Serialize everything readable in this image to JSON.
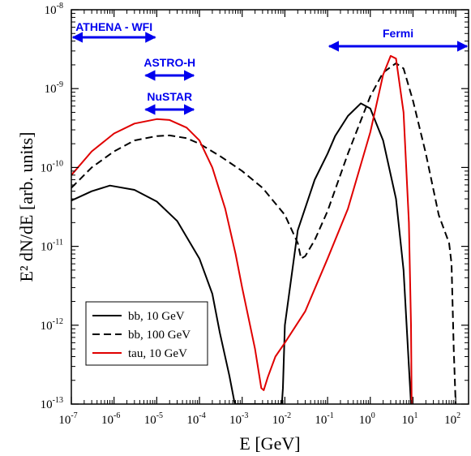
{
  "chart_data": {
    "type": "line",
    "title": "",
    "xlabel": "E [GeV]",
    "ylabel": "E² dN/dE [arb. units]",
    "xscale": "log",
    "yscale": "log",
    "xlim": [
      1e-07,
      200
    ],
    "ylim": [
      1e-13,
      1e-08
    ],
    "xticks": [
      {
        "label": "10",
        "exp": "-7",
        "value": 1e-07
      },
      {
        "label": "10",
        "exp": "-6",
        "value": 1e-06
      },
      {
        "label": "10",
        "exp": "-5",
        "value": 1e-05
      },
      {
        "label": "10",
        "exp": "-4",
        "value": 0.0001
      },
      {
        "label": "10",
        "exp": "-3",
        "value": 0.001
      },
      {
        "label": "10",
        "exp": "-2",
        "value": 0.01
      },
      {
        "label": "10",
        "exp": "-1",
        "value": 0.1
      },
      {
        "label": "10",
        "exp": "0",
        "value": 1
      },
      {
        "label": "10",
        "exp": "1",
        "value": 10
      },
      {
        "label": "10",
        "exp": "2",
        "value": 100
      }
    ],
    "yticks": [
      {
        "label": "10",
        "exp": "-13",
        "value": 1e-13
      },
      {
        "label": "10",
        "exp": "-12",
        "value": 1e-12
      },
      {
        "label": "10",
        "exp": "-11",
        "value": 1e-11
      },
      {
        "label": "10",
        "exp": "-10",
        "value": 1e-10
      },
      {
        "label": "10",
        "exp": "-9",
        "value": 1e-09
      },
      {
        "label": "10",
        "exp": "-8",
        "value": 1e-08
      }
    ],
    "grid": false,
    "legend_position": "bottom-left",
    "series": [
      {
        "name": "bb, 10 GeV",
        "color": "#000000",
        "dash": "solid",
        "x": [
          1e-07,
          3e-07,
          8e-07,
          3e-06,
          1e-05,
          3e-05,
          0.0001,
          0.0002,
          0.0003,
          0.0005,
          0.00065,
          0.00068,
          0.0085,
          0.009,
          0.01,
          0.02,
          0.05,
          0.1,
          0.15,
          0.3,
          0.6,
          1.0,
          2.0,
          4.0,
          6.0,
          8.0,
          9.0
        ],
        "y": [
          3.8e-11,
          5e-11,
          5.9e-11,
          5.2e-11,
          3.7e-11,
          2.1e-11,
          7e-12,
          2.5e-12,
          8e-13,
          2.3e-13,
          1.1e-13,
          1e-13,
          1e-13,
          1.6e-13,
          1e-12,
          1.6e-11,
          7e-11,
          1.5e-10,
          2.5e-10,
          4.5e-10,
          6.5e-10,
          5.6e-10,
          2.2e-10,
          4e-11,
          5e-12,
          3e-13,
          1e-13
        ]
      },
      {
        "name": "bb, 100 GeV",
        "color": "#000000",
        "dash": "dashed",
        "x": [
          1e-07,
          3e-07,
          1e-06,
          3e-06,
          1e-05,
          2e-05,
          5e-05,
          0.0001,
          0.0003,
          0.001,
          0.003,
          0.01,
          0.02,
          0.024,
          0.03,
          0.05,
          0.1,
          0.3,
          1.0,
          2.0,
          4.0,
          6.0,
          10.0,
          20.0,
          40.0,
          70.0,
          80.0,
          90.0,
          100.0
        ],
        "y": [
          5.5e-11,
          1e-10,
          1.6e-10,
          2.2e-10,
          2.5e-10,
          2.55e-10,
          2.35e-10,
          2e-10,
          1.4e-10,
          9e-11,
          5.5e-11,
          2.5e-11,
          1.1e-11,
          7e-12,
          7.5e-12,
          1.2e-11,
          2.8e-11,
          1.5e-10,
          8e-10,
          1.6e-09,
          2.1e-09,
          1.8e-09,
          7e-10,
          1.5e-10,
          2.5e-11,
          1.1e-11,
          6e-12,
          5e-13,
          1e-13
        ]
      },
      {
        "name": "tau, 10 GeV",
        "color": "#e00000",
        "dash": "solid",
        "x": [
          1e-07,
          3e-07,
          1e-06,
          3e-06,
          1e-05,
          2e-05,
          5e-05,
          0.0001,
          0.0002,
          0.0004,
          0.0007,
          0.001,
          0.002,
          0.0028,
          0.0032,
          0.004,
          0.006,
          0.01,
          0.03,
          0.1,
          0.3,
          1.0,
          2.0,
          3.0,
          4.0,
          6.0,
          8.0,
          9.0,
          9.3
        ],
        "y": [
          8e-11,
          1.6e-10,
          2.7e-10,
          3.6e-10,
          4.1e-10,
          4e-10,
          3.2e-10,
          2.2e-10,
          1e-10,
          3e-11,
          8e-12,
          3e-12,
          5e-13,
          1.6e-13,
          1.5e-13,
          2.2e-13,
          4e-13,
          6e-13,
          1.5e-12,
          7e-12,
          3e-11,
          2.8e-10,
          1.5e-09,
          2.6e-09,
          2.4e-09,
          5e-10,
          2e-11,
          1e-12,
          1e-13
        ]
      }
    ],
    "annotations": [
      {
        "label": "ATHENA - WFI",
        "x_range": [
          1e-07,
          1e-05
        ],
        "label_pos": "above"
      },
      {
        "label": "ASTRO-H",
        "x_range": [
          5e-06,
          8e-05
        ],
        "label_pos": "above"
      },
      {
        "label": "NuSTAR",
        "x_range": [
          5e-06,
          8e-05
        ],
        "label_pos": "above"
      },
      {
        "label": "Fermi",
        "x_range": [
          0.1,
          200
        ],
        "label_pos": "above"
      }
    ],
    "annotation_color": "#0000ee"
  }
}
